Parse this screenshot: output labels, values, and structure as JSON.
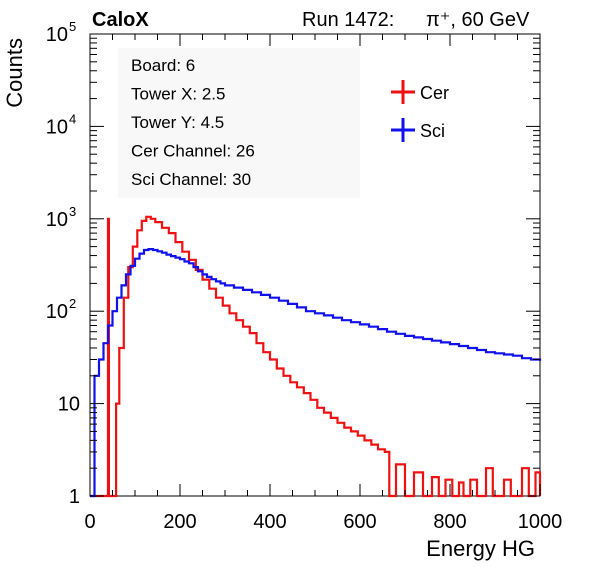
{
  "header": {
    "left_label": "CaloX",
    "run_label": "Run 1472:",
    "particle_label": "π⁺, 60 GeV"
  },
  "chart_data": {
    "type": "histogram",
    "title": "",
    "xlabel": "Energy HG",
    "ylabel": "Counts",
    "xlim": [
      0,
      1000
    ],
    "ylim": [
      1,
      100000
    ],
    "yscale": "log",
    "xticks": [
      0,
      200,
      400,
      600,
      800,
      1000
    ],
    "yticks": [
      {
        "value": 1,
        "base": "1",
        "exp": ""
      },
      {
        "value": 10,
        "base": "10",
        "exp": ""
      },
      {
        "value": 100,
        "base": "10",
        "exp": "2"
      },
      {
        "value": 1000,
        "base": "10",
        "exp": "3"
      },
      {
        "value": 10000,
        "base": "10",
        "exp": "4"
      },
      {
        "value": 100000,
        "base": "10",
        "exp": "5"
      }
    ],
    "grid": false,
    "legend_position": "top-right",
    "info_box": [
      "Board: 6",
      "Tower X: 2.5",
      "Tower Y: 4.5",
      "Cer Channel: 26",
      "Sci Channel: 30"
    ],
    "series": [
      {
        "name": "Cer",
        "color": "#ee1111",
        "points": [
          [
            0,
            1
          ],
          [
            38,
            1
          ],
          [
            40,
            1000
          ],
          [
            42,
            1
          ],
          [
            50,
            1
          ],
          [
            58,
            10
          ],
          [
            65,
            40
          ],
          [
            75,
            140
          ],
          [
            85,
            300
          ],
          [
            95,
            500
          ],
          [
            105,
            750
          ],
          [
            115,
            950
          ],
          [
            125,
            1050
          ],
          [
            135,
            1000
          ],
          [
            145,
            920
          ],
          [
            160,
            800
          ],
          [
            175,
            700
          ],
          [
            190,
            560
          ],
          [
            205,
            440
          ],
          [
            220,
            360
          ],
          [
            235,
            280
          ],
          [
            250,
            220
          ],
          [
            265,
            175
          ],
          [
            280,
            140
          ],
          [
            295,
            115
          ],
          [
            310,
            95
          ],
          [
            325,
            80
          ],
          [
            340,
            68
          ],
          [
            355,
            58
          ],
          [
            370,
            45
          ],
          [
            385,
            36
          ],
          [
            400,
            30
          ],
          [
            415,
            24
          ],
          [
            430,
            20
          ],
          [
            445,
            17
          ],
          [
            460,
            15
          ],
          [
            475,
            13
          ],
          [
            490,
            11
          ],
          [
            505,
            9
          ],
          [
            520,
            8
          ],
          [
            535,
            7
          ],
          [
            550,
            6.2
          ],
          [
            565,
            5.5
          ],
          [
            580,
            5
          ],
          [
            595,
            4.5
          ],
          [
            610,
            4
          ],
          [
            625,
            3.6
          ],
          [
            640,
            3.2
          ],
          [
            655,
            3
          ],
          [
            665,
            1
          ],
          [
            680,
            2.2
          ],
          [
            700,
            1
          ],
          [
            720,
            1.8
          ],
          [
            740,
            1
          ],
          [
            760,
            1.6
          ],
          [
            775,
            1
          ],
          [
            790,
            1.5
          ],
          [
            805,
            1
          ],
          [
            820,
            1.4
          ],
          [
            830,
            1
          ],
          [
            845,
            1.5
          ],
          [
            860,
            1
          ],
          [
            880,
            2
          ],
          [
            895,
            1
          ],
          [
            920,
            1.5
          ],
          [
            935,
            1
          ],
          [
            960,
            2
          ],
          [
            975,
            1
          ],
          [
            990,
            1.8
          ],
          [
            1000,
            1
          ]
        ]
      },
      {
        "name": "Sci",
        "color": "#1111ee",
        "points": [
          [
            0,
            1
          ],
          [
            5,
            1
          ],
          [
            10,
            20
          ],
          [
            20,
            30
          ],
          [
            30,
            45
          ],
          [
            40,
            70
          ],
          [
            50,
            100
          ],
          [
            60,
            140
          ],
          [
            70,
            190
          ],
          [
            80,
            250
          ],
          [
            90,
            310
          ],
          [
            100,
            370
          ],
          [
            110,
            420
          ],
          [
            120,
            460
          ],
          [
            130,
            470
          ],
          [
            140,
            460
          ],
          [
            150,
            445
          ],
          [
            160,
            430
          ],
          [
            170,
            410
          ],
          [
            180,
            395
          ],
          [
            190,
            380
          ],
          [
            200,
            365
          ],
          [
            210,
            345
          ],
          [
            220,
            330
          ],
          [
            230,
            300
          ],
          [
            240,
            270
          ],
          [
            250,
            250
          ],
          [
            260,
            235
          ],
          [
            270,
            222
          ],
          [
            280,
            210
          ],
          [
            290,
            200
          ],
          [
            300,
            190
          ],
          [
            320,
            180
          ],
          [
            340,
            170
          ],
          [
            360,
            160
          ],
          [
            380,
            150
          ],
          [
            400,
            140
          ],
          [
            420,
            130
          ],
          [
            440,
            120
          ],
          [
            460,
            110
          ],
          [
            480,
            100
          ],
          [
            500,
            95
          ],
          [
            520,
            90
          ],
          [
            540,
            85
          ],
          [
            560,
            80
          ],
          [
            580,
            76
          ],
          [
            600,
            72
          ],
          [
            620,
            68
          ],
          [
            640,
            64
          ],
          [
            660,
            60
          ],
          [
            680,
            57
          ],
          [
            700,
            54
          ],
          [
            720,
            52
          ],
          [
            740,
            50
          ],
          [
            760,
            48
          ],
          [
            780,
            46
          ],
          [
            800,
            44
          ],
          [
            820,
            42
          ],
          [
            840,
            40
          ],
          [
            860,
            38
          ],
          [
            880,
            36
          ],
          [
            900,
            35
          ],
          [
            920,
            34
          ],
          [
            940,
            33
          ],
          [
            960,
            31
          ],
          [
            980,
            30
          ],
          [
            1000,
            29
          ]
        ]
      }
    ]
  }
}
